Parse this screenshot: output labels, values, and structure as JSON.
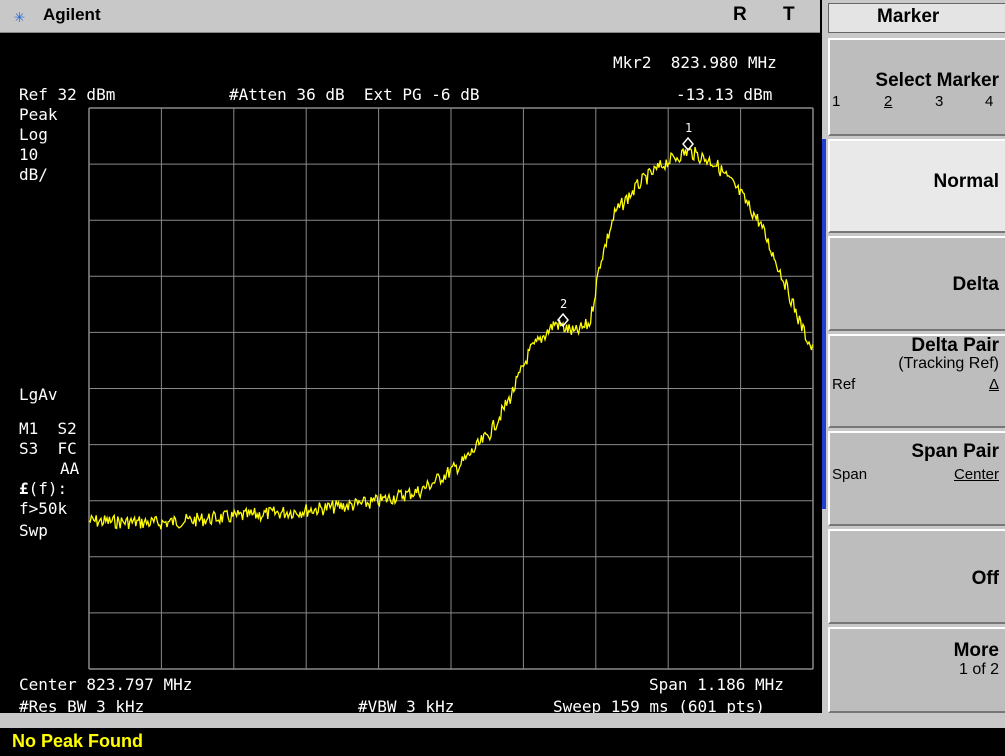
{
  "header": {
    "brand": "Agilent",
    "r_label": "R",
    "t_label": "T"
  },
  "screen": {
    "marker_readout": "Mkr2  823.980 MHz",
    "marker_level": "-13.13 dBm",
    "ref_level": "Ref 32 dBm",
    "atten": "#Atten 36 dB  Ext PG -6 dB",
    "detector": "Peak",
    "scale_type": "Log",
    "scale_value": "10",
    "scale_unit": "dB/",
    "avg_type": "LgAv",
    "marker_status_1": "M1  S2",
    "marker_status_2": "S3  FC",
    "marker_status_3": "AA",
    "trigger": "(f):",
    "trigger_symbol": "£",
    "freq_condition": "f>50k",
    "sweep_label": "Swp",
    "center": "Center 823.797 MHz",
    "span": "Span 1.186 MHz",
    "res_bw": "#Res BW 3 kHz",
    "vbw": "#VBW 3 kHz",
    "sweep": "Sweep 159 ms (601 pts)",
    "marker1_label": "1",
    "marker2_label": "2"
  },
  "menu": {
    "title": "Marker",
    "select_marker": {
      "label": "Select Marker",
      "options": [
        "1",
        "2",
        "3",
        "4"
      ],
      "selected": "2"
    },
    "normal": "Normal",
    "delta": "Delta",
    "delta_pair": {
      "label": "Delta Pair",
      "sub": "(Tracking Ref)",
      "left": "Ref",
      "right": "Δ"
    },
    "span_pair": {
      "label": "Span Pair",
      "left": "Span",
      "right": "Center"
    },
    "off": "Off",
    "more": {
      "label": "More",
      "sub": "1 of 2"
    }
  },
  "status_bar": {
    "message": "No Peak Found"
  },
  "colors": {
    "trace": "#ffff00",
    "grid": "#8a8a8a",
    "status_text": "#ffff00",
    "softkey_edge": "#1e3fd0"
  }
}
